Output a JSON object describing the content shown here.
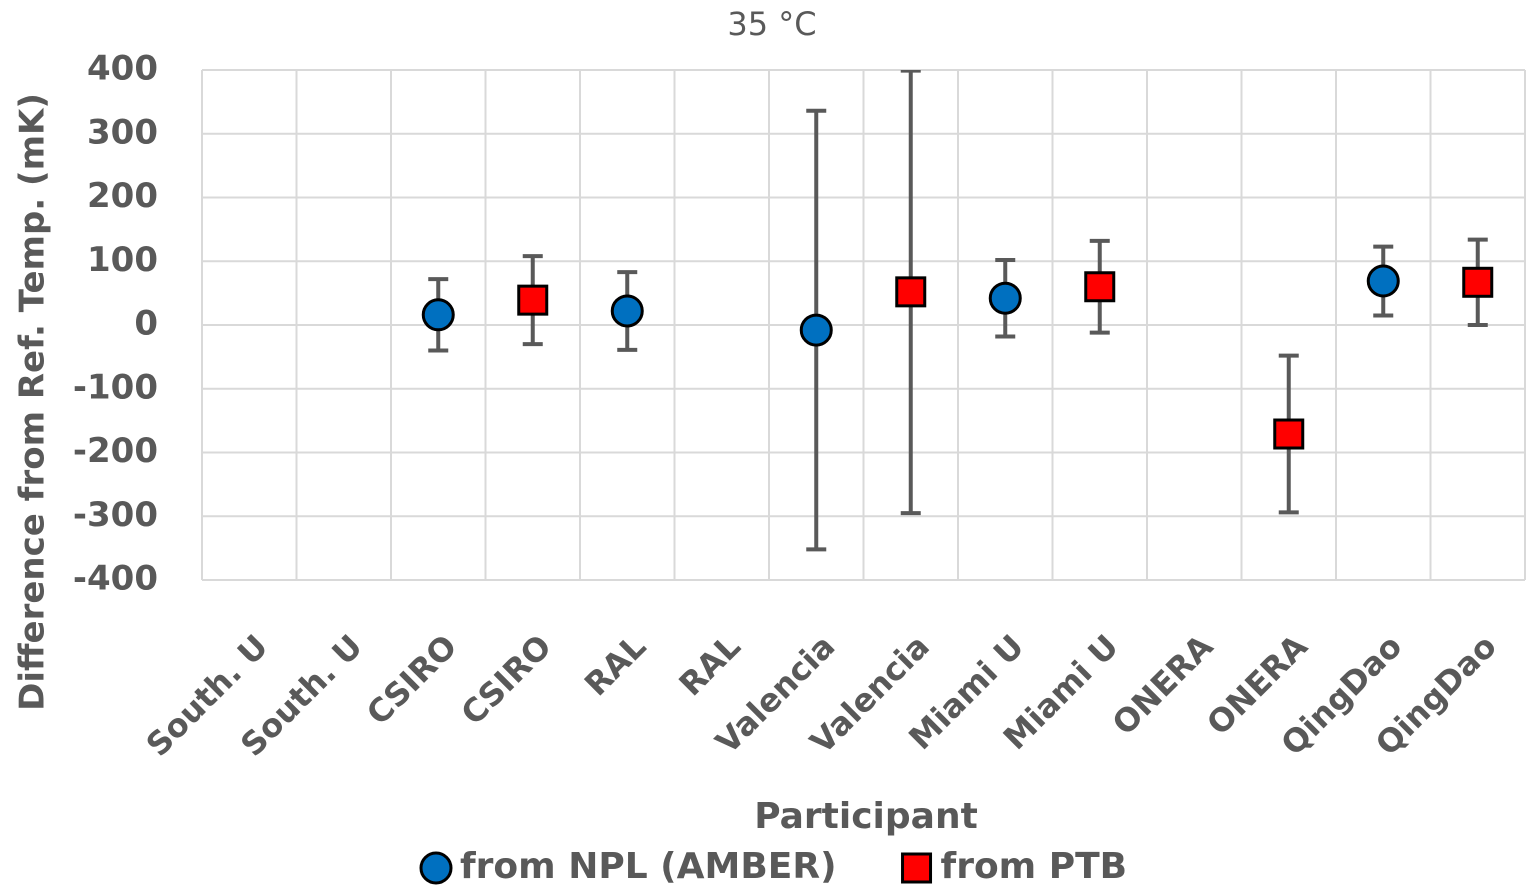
{
  "chart_data": {
    "type": "errorbar_scatter",
    "title": "35 °C",
    "x_label": "Participant",
    "y_label": "Difference from Ref. Temp. (mK)",
    "categories": [
      "South. U",
      "South. U",
      "CSIRO",
      "CSIRO",
      "RAL",
      "RAL",
      "Valencia",
      "Valencia",
      "Miami U",
      "Miami U",
      "ONERA",
      "ONERA",
      "QingDao",
      "QingDao"
    ],
    "series": [
      {
        "name": "from NPL (AMBER)",
        "color": "#0070c0",
        "marker": "circle",
        "values": [
          null,
          null,
          16,
          null,
          22,
          null,
          -8,
          null,
          42,
          null,
          null,
          null,
          69,
          null
        ],
        "errors": [
          null,
          null,
          56,
          null,
          61,
          null,
          344,
          null,
          60,
          null,
          null,
          null,
          54,
          null
        ]
      },
      {
        "name": "from PTB",
        "color": "#ff0000",
        "marker": "square",
        "values": [
          null,
          null,
          null,
          39,
          null,
          null,
          null,
          52,
          null,
          60,
          null,
          -171,
          null,
          67
        ],
        "errors": [
          null,
          null,
          null,
          69,
          null,
          null,
          null,
          347,
          null,
          72,
          null,
          123,
          null,
          67
        ]
      }
    ],
    "ylim": [
      -400,
      400
    ],
    "yticks": [
      -400,
      -300,
      -200,
      -100,
      0,
      100,
      200,
      300,
      400
    ],
    "grid": true
  }
}
